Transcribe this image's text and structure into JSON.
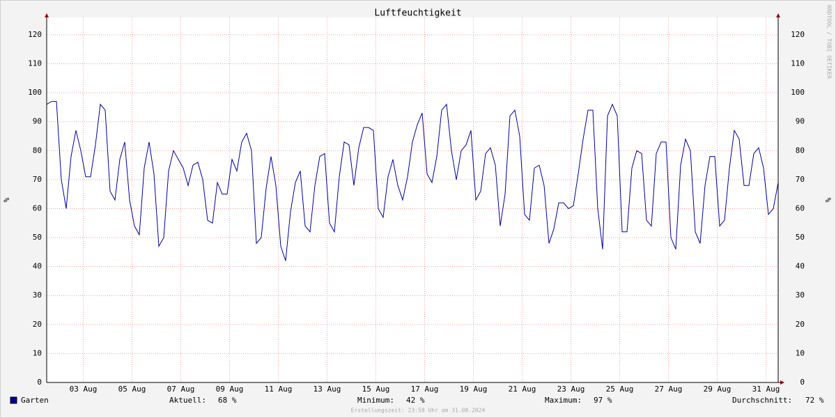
{
  "chart_data": {
    "type": "line",
    "title": "Luftfeuchtigkeit",
    "y_label": "%",
    "watermark": "RRDTOOL / TOBI OETIKER",
    "footer": "Erstellungszeit: 23:58 Uhr am 31.08.2024",
    "xlim": [
      2,
      32
    ],
    "xticks": [
      {
        "value": 3.5,
        "label": "03 Aug"
      },
      {
        "value": 5.5,
        "label": "05 Aug"
      },
      {
        "value": 7.5,
        "label": "07 Aug"
      },
      {
        "value": 9.5,
        "label": "09 Aug"
      },
      {
        "value": 11.5,
        "label": "11 Aug"
      },
      {
        "value": 13.5,
        "label": "13 Aug"
      },
      {
        "value": 15.5,
        "label": "15 Aug"
      },
      {
        "value": 17.5,
        "label": "17 Aug"
      },
      {
        "value": 19.5,
        "label": "19 Aug"
      },
      {
        "value": 21.5,
        "label": "21 Aug"
      },
      {
        "value": 23.5,
        "label": "23 Aug"
      },
      {
        "value": 25.5,
        "label": "25 Aug"
      },
      {
        "value": 27.5,
        "label": "27 Aug"
      },
      {
        "value": 29.5,
        "label": "29 Aug"
      },
      {
        "value": 31.5,
        "label": "31 Aug"
      }
    ],
    "ylim": [
      0,
      126
    ],
    "yticks": [
      0,
      10,
      20,
      30,
      40,
      50,
      60,
      70,
      80,
      90,
      100,
      110,
      120
    ],
    "grid": true,
    "x": [
      2,
      2.2,
      2.4,
      2.6,
      2.8,
      3,
      3.2,
      3.4,
      3.6,
      3.8,
      4,
      4.2,
      4.4,
      4.6,
      4.8,
      5,
      5.2,
      5.4,
      5.6,
      5.8,
      6,
      6.2,
      6.4,
      6.6,
      6.8,
      7,
      7.2,
      7.4,
      7.6,
      7.8,
      8,
      8.2,
      8.4,
      8.6,
      8.8,
      9,
      9.2,
      9.4,
      9.6,
      9.8,
      10,
      10.2,
      10.4,
      10.6,
      10.8,
      11,
      11.2,
      11.4,
      11.6,
      11.8,
      12,
      12.2,
      12.4,
      12.6,
      12.8,
      13,
      13.2,
      13.4,
      13.6,
      13.8,
      14,
      14.2,
      14.4,
      14.6,
      14.8,
      15,
      15.2,
      15.4,
      15.6,
      15.8,
      16,
      16.2,
      16.4,
      16.6,
      16.8,
      17,
      17.2,
      17.4,
      17.6,
      17.8,
      18,
      18.2,
      18.4,
      18.6,
      18.8,
      19,
      19.2,
      19.4,
      19.6,
      19.8,
      20,
      20.2,
      20.4,
      20.6,
      20.8,
      21,
      21.2,
      21.4,
      21.6,
      21.8,
      22,
      22.2,
      22.4,
      22.6,
      22.8,
      23,
      23.2,
      23.4,
      23.6,
      23.8,
      24,
      24.2,
      24.4,
      24.6,
      24.8,
      25,
      25.2,
      25.4,
      25.6,
      25.8,
      26,
      26.2,
      26.4,
      26.6,
      26.8,
      27,
      27.2,
      27.4,
      27.6,
      27.8,
      28,
      28.2,
      28.4,
      28.6,
      28.8,
      29,
      29.2,
      29.4,
      29.6,
      29.8,
      30,
      30.2,
      30.4,
      30.6,
      30.8,
      31,
      31.2,
      31.4,
      31.6,
      31.8,
      32
    ],
    "series": [
      {
        "name": "Garten",
        "color": "#0000a0",
        "values": [
          96,
          97,
          97,
          70,
          60,
          78,
          87,
          80,
          71,
          71,
          82,
          96,
          94,
          66,
          63,
          77,
          83,
          63,
          54,
          51,
          74,
          83,
          72,
          47,
          50,
          73,
          80,
          77,
          74,
          68,
          75,
          76,
          70,
          56,
          55,
          69,
          65,
          65,
          77,
          73,
          83,
          86,
          80,
          48,
          50,
          67,
          78,
          68,
          47,
          42,
          59,
          69,
          73,
          54,
          52,
          68,
          78,
          79,
          55,
          52,
          71,
          83,
          82,
          68,
          81,
          88,
          88,
          87,
          60,
          57,
          71,
          77,
          68,
          63,
          71,
          83,
          89,
          93,
          72,
          69,
          78,
          94,
          96,
          80,
          70,
          80,
          82,
          87,
          63,
          66,
          79,
          81,
          75,
          54,
          65,
          92,
          94,
          85,
          58,
          56,
          74,
          75,
          68,
          48,
          53,
          62,
          62,
          60,
          61,
          72,
          84,
          94,
          94,
          60,
          46,
          92,
          96,
          92,
          52,
          52,
          74,
          80,
          79,
          56,
          54,
          79,
          83,
          83,
          50,
          46,
          75,
          84,
          80,
          52,
          48,
          68,
          78,
          78,
          54,
          56,
          74,
          87,
          84,
          68,
          68,
          79,
          81,
          74,
          58,
          60,
          69
        ]
      }
    ],
    "stats": [
      {
        "name": "Aktuell:",
        "value": "68 %"
      },
      {
        "name": "Minimum:",
        "value": "42 %"
      },
      {
        "name": "Maximum:",
        "value": "97 %"
      },
      {
        "name": "Durchschnitt:",
        "value": "72 %"
      }
    ]
  }
}
